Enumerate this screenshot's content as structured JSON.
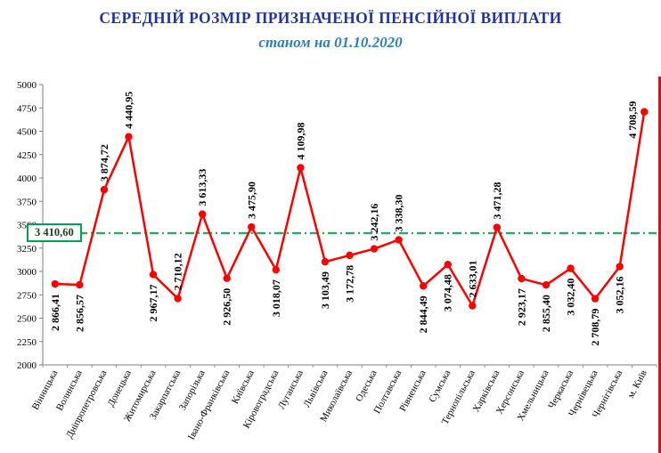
{
  "title": "СЕРЕДНІЙ РОЗМІР ПРИЗНАЧЕНОЇ ПЕНСІЙНОЇ ВИПЛАТИ",
  "subtitle": "станом на 01.10.2020",
  "average": {
    "value": 3410.6,
    "label": "3 410,60"
  },
  "colors": {
    "title": "#2234a4",
    "subtitle": "#2d7fb8",
    "line": "#ff0000",
    "average_line": "#00b050",
    "average_box_border": "#00a14f",
    "average_text": "#1f3b1f",
    "axis": "#7f7f7f",
    "text": "#000000",
    "frame_right": "#ff0000",
    "background": "#ffffff"
  },
  "chart_data": {
    "type": "line",
    "title": "СЕРЕДНІЙ РОЗМІР ПРИЗНАЧЕНОЇ ПЕНСІЙНОЇ ВИПЛАТИ",
    "subtitle": "станом на 01.10.2020",
    "legend": "none",
    "grid": false,
    "ylim": [
      2000,
      5000
    ],
    "ytick_step": 250,
    "yticks": [
      2000,
      2250,
      2500,
      2750,
      3000,
      3250,
      3500,
      3750,
      4000,
      4250,
      4500,
      4750,
      5000
    ],
    "average_line": {
      "value": 3410.6,
      "label": "3 410,60"
    },
    "categories": [
      "Вінницька",
      "Волинська",
      "Дніпропетровська",
      "Донецька",
      "Житомирська",
      "Закарпатська",
      "Запорізька",
      "Івано-Франківська",
      "Київська",
      "Кіровоградська",
      "Луганська",
      "Львівська",
      "Миколаївська",
      "Одеська",
      "Полтавська",
      "Рівненська",
      "Сумська",
      "Тернопільська",
      "Харківська",
      "Херсонська",
      "Хмельницька",
      "Черкаська",
      "Чернівецька",
      "Чернігівська",
      "м. Київ"
    ],
    "values": [
      2866.41,
      2856.57,
      3874.72,
      4440.95,
      2967.17,
      2710.12,
      3613.33,
      2926.5,
      3475.9,
      3018.07,
      4109.98,
      3103.49,
      3172.78,
      3242.16,
      3338.3,
      2844.49,
      3074.48,
      2633.01,
      3471.28,
      2923.17,
      2855.4,
      3032.4,
      2708.79,
      3052.16,
      4708.59
    ],
    "point_labels": [
      "2 866,41",
      "2 856,57",
      "3 874,72",
      "4 440,95",
      "2 967,17",
      "2 710,12",
      "3 613,33",
      "2 926,50",
      "3 475,90",
      "3 018,07",
      "4 109,98",
      "3 103,49",
      "3 172,78",
      "3 242,16",
      "3 338,30",
      "2 844,49",
      "3 074,48",
      "2 633,01",
      "3 471,28",
      "2 923,17",
      "2 855,40",
      "3 032,40",
      "2 708,79",
      "3 052,16",
      "4 708,59"
    ],
    "label_side": [
      "below",
      "below",
      "above",
      "above",
      "below",
      "above",
      "above",
      "below",
      "above",
      "below",
      "above",
      "below",
      "below",
      "above",
      "above",
      "below",
      "below",
      "above",
      "above",
      "below",
      "below",
      "below",
      "below",
      "below",
      "left"
    ]
  }
}
